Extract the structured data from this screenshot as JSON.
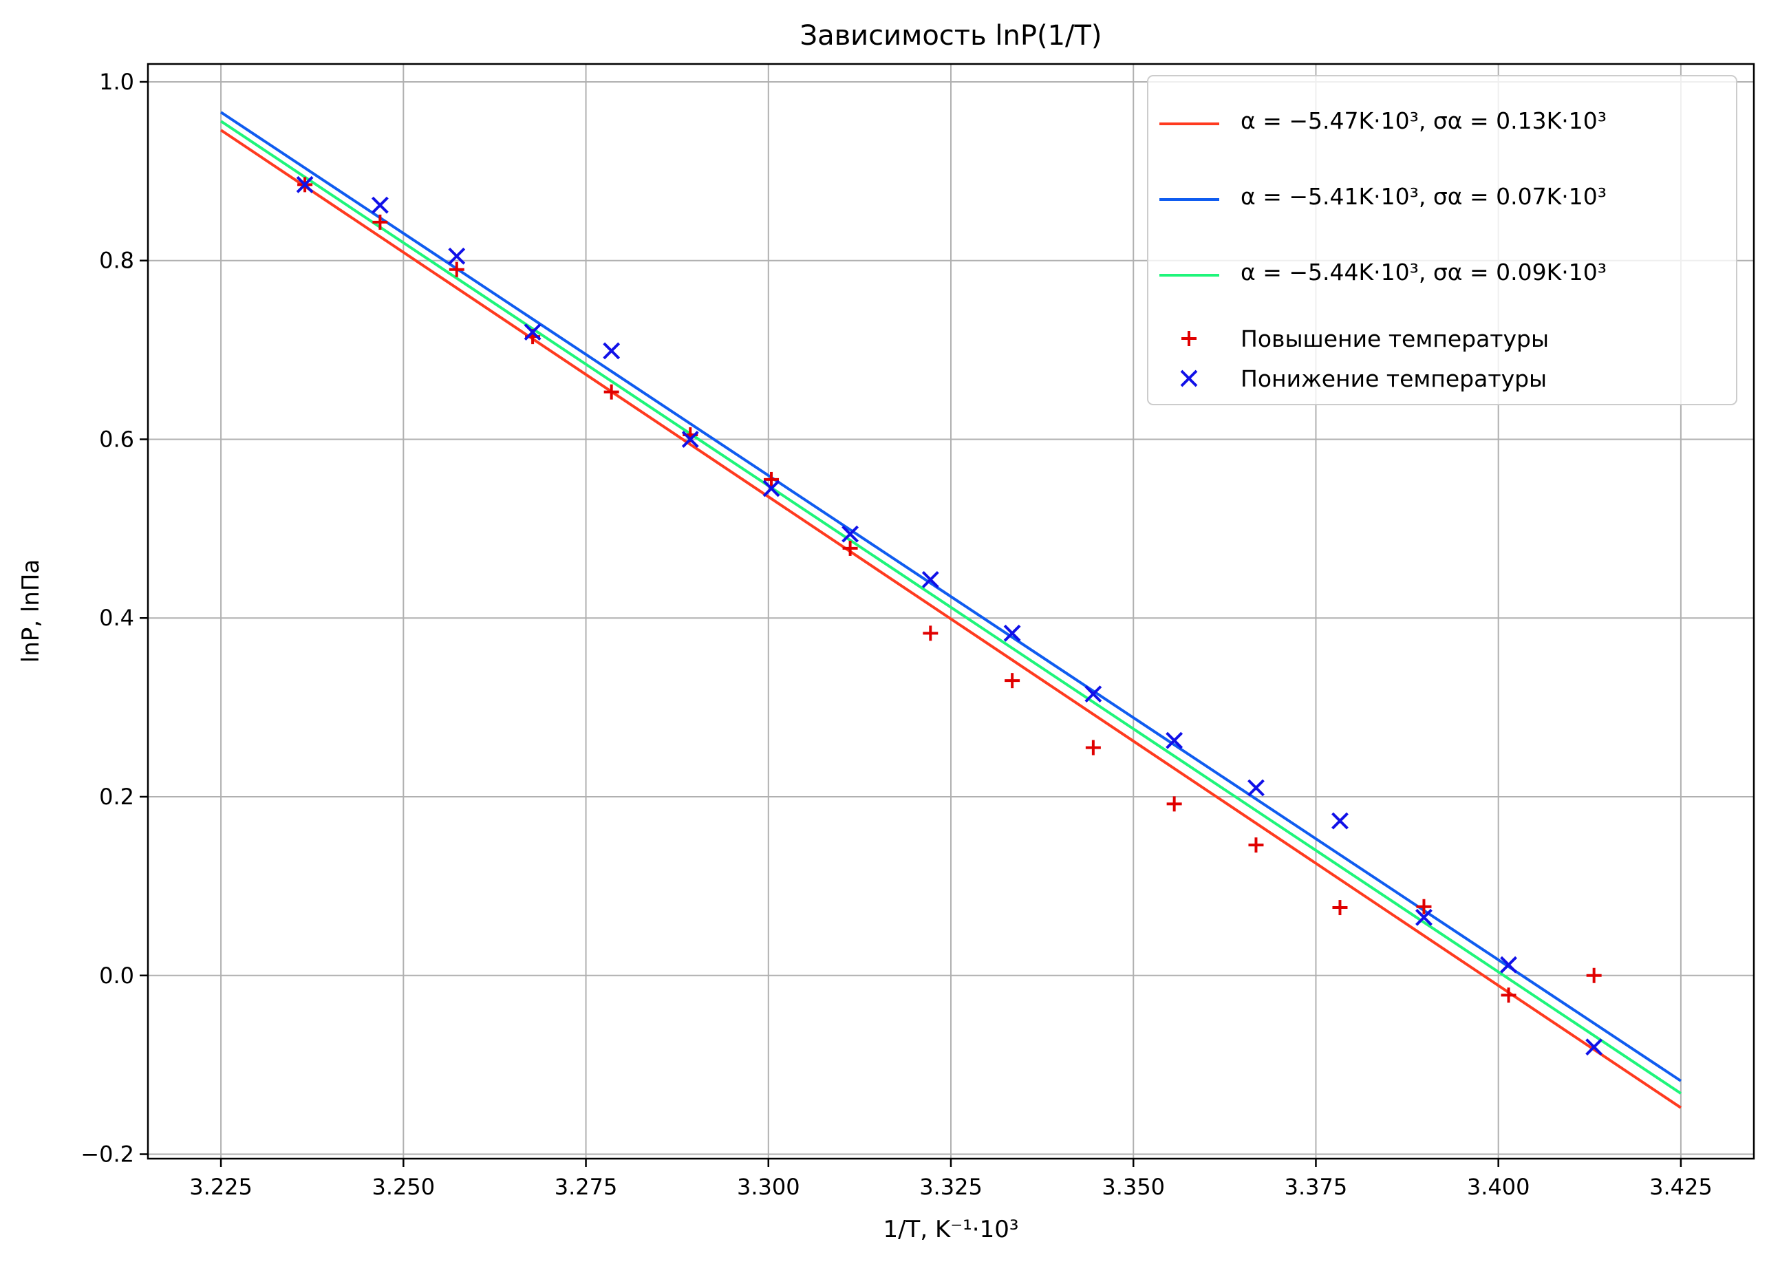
{
  "chart_data": {
    "type": "scatter",
    "title": "Зависимость lnP(1/T)",
    "xlabel": "1/T, K⁻¹·10³",
    "ylabel": "lnP, lnПа",
    "xlim": [
      3.215,
      3.435
    ],
    "ylim": [
      -0.205,
      1.02
    ],
    "x_ticks": [
      "3.225",
      "3.250",
      "3.275",
      "3.300",
      "3.325",
      "3.350",
      "3.375",
      "3.400",
      "3.425"
    ],
    "y_ticks": [
      "−0.2",
      "0.0",
      "0.2",
      "0.4",
      "0.6",
      "0.8",
      "1.0"
    ],
    "grid": true,
    "legend_position": "top-right",
    "series": [
      {
        "name": "α = −5.47K·10³,  σα = 0.13K·10³",
        "kind": "line",
        "color": "#ff3a1f",
        "x": [
          3.225,
          3.425
        ],
        "y": [
          0.946,
          -0.148
        ]
      },
      {
        "name": "α = −5.41K·10³,  σα = 0.07K·10³",
        "kind": "line",
        "color": "#0f5cf0",
        "x": [
          3.225,
          3.425
        ],
        "y": [
          0.966,
          -0.118
        ]
      },
      {
        "name": "α = −5.44K·10³,  σα = 0.09K·10³",
        "kind": "line",
        "color": "#1ef57a",
        "x": [
          3.225,
          3.425
        ],
        "y": [
          0.956,
          -0.132
        ]
      },
      {
        "name": "Повышение температуры",
        "kind": "scatter",
        "marker": "plus",
        "color": "#e00000",
        "x": [
          3.2365,
          3.2468,
          3.2573,
          3.2677,
          3.2785,
          3.2893,
          3.3004,
          3.3112,
          3.3222,
          3.3334,
          3.3445,
          3.3556,
          3.3668,
          3.3783,
          3.3898,
          3.4014,
          3.4131
        ],
        "y": [
          0.885,
          0.843,
          0.79,
          0.715,
          0.653,
          0.605,
          0.555,
          0.478,
          0.383,
          0.33,
          0.255,
          0.192,
          0.146,
          0.076,
          0.077,
          -0.022,
          0.0
        ]
      },
      {
        "name": "Понижение температуры",
        "kind": "scatter",
        "marker": "x",
        "color": "#1010e8",
        "x": [
          3.2365,
          3.2468,
          3.2573,
          3.2677,
          3.2785,
          3.2893,
          3.3004,
          3.3112,
          3.3222,
          3.3334,
          3.3445,
          3.3556,
          3.3668,
          3.3783,
          3.3898,
          3.4014,
          3.4131
        ],
        "y": [
          0.885,
          0.862,
          0.805,
          0.72,
          0.699,
          0.6,
          0.545,
          0.494,
          0.443,
          0.383,
          0.315,
          0.263,
          0.21,
          0.173,
          0.065,
          0.012,
          -0.08
        ]
      }
    ]
  }
}
